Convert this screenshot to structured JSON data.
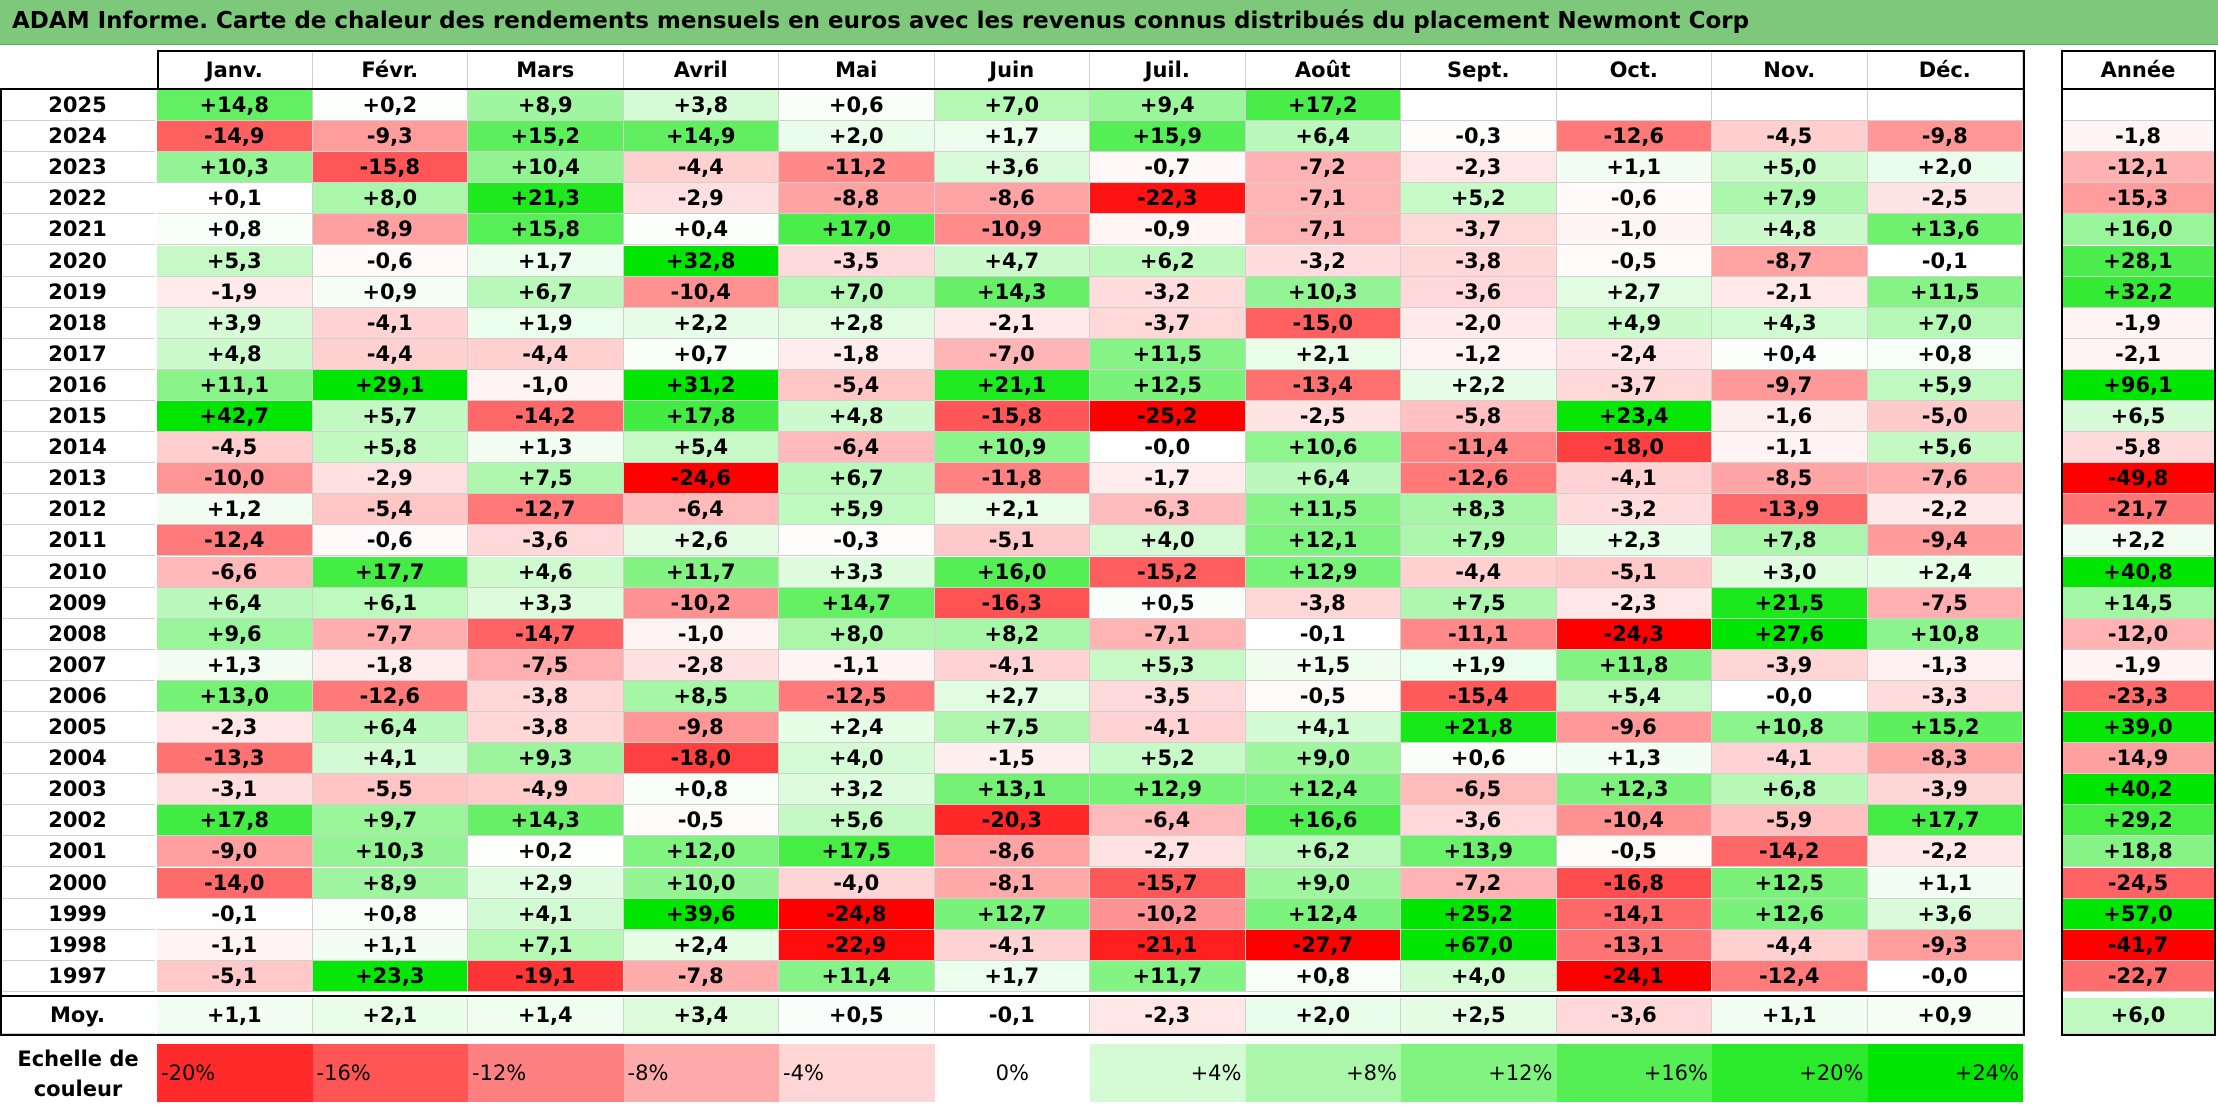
{
  "title": "ADAM Informe. Carte de chaleur des rendements mensuels en euros avec les revenus connus distribués du placement Newmont Corp",
  "chart_data": {
    "type": "heatmap",
    "title": "ADAM Informe. Carte de chaleur des rendements mensuels en euros avec les revenus connus distribués du placement Newmont Corp",
    "columns": [
      "Janv.",
      "Févr.",
      "Mars",
      "Avril",
      "Mai",
      "Juin",
      "Juil.",
      "Août",
      "Sept.",
      "Oct.",
      "Nov.",
      "Déc."
    ],
    "annual_header": "Année",
    "rows": [
      {
        "year": "2025",
        "values": [
          "+14,8",
          "+0,2",
          "+8,9",
          "+3,8",
          "+0,6",
          "+7,0",
          "+9,4",
          "+17,2",
          "",
          "",
          "",
          ""
        ],
        "annual": ""
      },
      {
        "year": "2024",
        "values": [
          "-14,9",
          "-9,3",
          "+15,2",
          "+14,9",
          "+2,0",
          "+1,7",
          "+15,9",
          "+6,4",
          "-0,3",
          "-12,6",
          "-4,5",
          "-9,8"
        ],
        "annual": "-1,8"
      },
      {
        "year": "2023",
        "values": [
          "+10,3",
          "-15,8",
          "+10,4",
          "-4,4",
          "-11,2",
          "+3,6",
          "-0,7",
          "-7,2",
          "-2,3",
          "+1,1",
          "+5,0",
          "+2,0"
        ],
        "annual": "-12,1"
      },
      {
        "year": "2022",
        "values": [
          "+0,1",
          "+8,0",
          "+21,3",
          "-2,9",
          "-8,8",
          "-8,6",
          "-22,3",
          "-7,1",
          "+5,2",
          "-0,6",
          "+7,9",
          "-2,5"
        ],
        "annual": "-15,3"
      },
      {
        "year": "2021",
        "values": [
          "+0,8",
          "-8,9",
          "+15,8",
          "+0,4",
          "+17,0",
          "-10,9",
          "-0,9",
          "-7,1",
          "-3,7",
          "-1,0",
          "+4,8",
          "+13,6"
        ],
        "annual": "+16,0"
      },
      {
        "year": "2020",
        "values": [
          "+5,3",
          "-0,6",
          "+1,7",
          "+32,8",
          "-3,5",
          "+4,7",
          "+6,2",
          "-3,2",
          "-3,8",
          "-0,5",
          "-8,7",
          "-0,1"
        ],
        "annual": "+28,1"
      },
      {
        "year": "2019",
        "values": [
          "-1,9",
          "+0,9",
          "+6,7",
          "-10,4",
          "+7,0",
          "+14,3",
          "-3,2",
          "+10,3",
          "-3,6",
          "+2,7",
          "-2,1",
          "+11,5"
        ],
        "annual": "+32,2"
      },
      {
        "year": "2018",
        "values": [
          "+3,9",
          "-4,1",
          "+1,9",
          "+2,2",
          "+2,8",
          "-2,1",
          "-3,7",
          "-15,0",
          "-2,0",
          "+4,9",
          "+4,3",
          "+7,0"
        ],
        "annual": "-1,9"
      },
      {
        "year": "2017",
        "values": [
          "+4,8",
          "-4,4",
          "-4,4",
          "+0,7",
          "-1,8",
          "-7,0",
          "+11,5",
          "+2,1",
          "-1,2",
          "-2,4",
          "+0,4",
          "+0,8"
        ],
        "annual": "-2,1"
      },
      {
        "year": "2016",
        "values": [
          "+11,1",
          "+29,1",
          "-1,0",
          "+31,2",
          "-5,4",
          "+21,1",
          "+12,5",
          "-13,4",
          "+2,2",
          "-3,7",
          "-9,7",
          "+5,9"
        ],
        "annual": "+96,1"
      },
      {
        "year": "2015",
        "values": [
          "+42,7",
          "+5,7",
          "-14,2",
          "+17,8",
          "+4,8",
          "-15,8",
          "-25,2",
          "-2,5",
          "-5,8",
          "+23,4",
          "-1,6",
          "-5,0"
        ],
        "annual": "+6,5"
      },
      {
        "year": "2014",
        "values": [
          "-4,5",
          "+5,8",
          "+1,3",
          "+5,4",
          "-6,4",
          "+10,9",
          "-0,0",
          "+10,6",
          "-11,4",
          "-18,0",
          "-1,1",
          "+5,6"
        ],
        "annual": "-5,8"
      },
      {
        "year": "2013",
        "values": [
          "-10,0",
          "-2,9",
          "+7,5",
          "-24,6",
          "+6,7",
          "-11,8",
          "-1,7",
          "+6,4",
          "-12,6",
          "-4,1",
          "-8,5",
          "-7,6"
        ],
        "annual": "-49,8"
      },
      {
        "year": "2012",
        "values": [
          "+1,2",
          "-5,4",
          "-12,7",
          "-6,4",
          "+5,9",
          "+2,1",
          "-6,3",
          "+11,5",
          "+8,3",
          "-3,2",
          "-13,9",
          "-2,2"
        ],
        "annual": "-21,7"
      },
      {
        "year": "2011",
        "values": [
          "-12,4",
          "-0,6",
          "-3,6",
          "+2,6",
          "-0,3",
          "-5,1",
          "+4,0",
          "+12,1",
          "+7,9",
          "+2,3",
          "+7,8",
          "-9,4"
        ],
        "annual": "+2,2"
      },
      {
        "year": "2010",
        "values": [
          "-6,6",
          "+17,7",
          "+4,6",
          "+11,7",
          "+3,3",
          "+16,0",
          "-15,2",
          "+12,9",
          "-4,4",
          "-5,1",
          "+3,0",
          "+2,4"
        ],
        "annual": "+40,8"
      },
      {
        "year": "2009",
        "values": [
          "+6,4",
          "+6,1",
          "+3,3",
          "-10,2",
          "+14,7",
          "-16,3",
          "+0,5",
          "-3,8",
          "+7,5",
          "-2,3",
          "+21,5",
          "-7,5"
        ],
        "annual": "+14,5"
      },
      {
        "year": "2008",
        "values": [
          "+9,6",
          "-7,7",
          "-14,7",
          "-1,0",
          "+8,0",
          "+8,2",
          "-7,1",
          "-0,1",
          "-11,1",
          "-24,3",
          "+27,6",
          "+10,8"
        ],
        "annual": "-12,0"
      },
      {
        "year": "2007",
        "values": [
          "+1,3",
          "-1,8",
          "-7,5",
          "-2,8",
          "-1,1",
          "-4,1",
          "+5,3",
          "+1,5",
          "+1,9",
          "+11,8",
          "-3,9",
          "-1,3"
        ],
        "annual": "-1,9"
      },
      {
        "year": "2006",
        "values": [
          "+13,0",
          "-12,6",
          "-3,8",
          "+8,5",
          "-12,5",
          "+2,7",
          "-3,5",
          "-0,5",
          "-15,4",
          "+5,4",
          "-0,0",
          "-3,3"
        ],
        "annual": "-23,3"
      },
      {
        "year": "2005",
        "values": [
          "-2,3",
          "+6,4",
          "-3,8",
          "-9,8",
          "+2,4",
          "+7,5",
          "-4,1",
          "+4,1",
          "+21,8",
          "-9,6",
          "+10,8",
          "+15,2"
        ],
        "annual": "+39,0"
      },
      {
        "year": "2004",
        "values": [
          "-13,3",
          "+4,1",
          "+9,3",
          "-18,0",
          "+4,0",
          "-1,5",
          "+5,2",
          "+9,0",
          "+0,6",
          "+1,3",
          "-4,1",
          "-8,3"
        ],
        "annual": "-14,9"
      },
      {
        "year": "2003",
        "values": [
          "-3,1",
          "-5,5",
          "-4,9",
          "+0,8",
          "+3,2",
          "+13,1",
          "+12,9",
          "+12,4",
          "-6,5",
          "+12,3",
          "+6,8",
          "-3,9"
        ],
        "annual": "+40,2"
      },
      {
        "year": "2002",
        "values": [
          "+17,8",
          "+9,7",
          "+14,3",
          "-0,5",
          "+5,6",
          "-20,3",
          "-6,4",
          "+16,6",
          "-3,6",
          "-10,4",
          "-5,9",
          "+17,7"
        ],
        "annual": "+29,2"
      },
      {
        "year": "2001",
        "values": [
          "-9,0",
          "+10,3",
          "+0,2",
          "+12,0",
          "+17,5",
          "-8,6",
          "-2,7",
          "+6,2",
          "+13,9",
          "-0,5",
          "-14,2",
          "-2,2"
        ],
        "annual": "+18,8"
      },
      {
        "year": "2000",
        "values": [
          "-14,0",
          "+8,9",
          "+2,9",
          "+10,0",
          "-4,0",
          "-8,1",
          "-15,7",
          "+9,0",
          "-7,2",
          "-16,8",
          "+12,5",
          "+1,1"
        ],
        "annual": "-24,5"
      },
      {
        "year": "1999",
        "values": [
          "-0,1",
          "+0,8",
          "+4,1",
          "+39,6",
          "-24,8",
          "+12,7",
          "-10,2",
          "+12,4",
          "+25,2",
          "-14,1",
          "+12,6",
          "+3,6"
        ],
        "annual": "+57,0"
      },
      {
        "year": "1998",
        "values": [
          "-1,1",
          "+1,1",
          "+7,1",
          "+2,4",
          "-22,9",
          "-4,1",
          "-21,1",
          "-27,7",
          "+67,0",
          "-13,1",
          "-4,4",
          "-9,3"
        ],
        "annual": "-41,7"
      },
      {
        "year": "1997",
        "values": [
          "-5,1",
          "+23,3",
          "-19,1",
          "-7,8",
          "+11,4",
          "+1,7",
          "+11,7",
          "+0,8",
          "+4,0",
          "-24,1",
          "-12,4",
          "-0,0"
        ],
        "annual": "-22,7"
      }
    ],
    "average": {
      "label": "Moy.",
      "values": [
        "+1,1",
        "+2,1",
        "+1,4",
        "+3,4",
        "+0,5",
        "-0,1",
        "-2,3",
        "+2,0",
        "+2,5",
        "-3,6",
        "+1,1",
        "+0,9"
      ],
      "annual": "+6,0"
    },
    "scale": {
      "label": "Echelle de couleur",
      "steps": [
        "-20%",
        "-16%",
        "-12%",
        "-8%",
        "-4%",
        "0%",
        "+4%",
        "+8%",
        "+12%",
        "+16%",
        "+20%",
        "+24%"
      ]
    }
  }
}
